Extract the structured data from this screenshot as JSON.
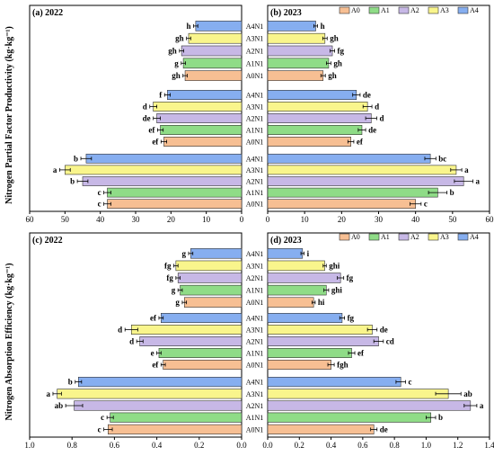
{
  "colors": {
    "A0": "#f7bf93",
    "A1": "#8fdc87",
    "A2": "#c7b8e6",
    "A3": "#f9f58c",
    "A4": "#86aef0"
  },
  "legend_labels": [
    "A0",
    "A1",
    "A2",
    "A3",
    "A4"
  ],
  "y_labels": {
    "top": "Nitrogen Partial Factor Productivity (kg·kg⁻¹)",
    "bottom": "Nitrogen Absorption Efficiency (kg·kg⁻¹)"
  },
  "chart_data": [
    {
      "type": "bar",
      "panel": "(a) 2022",
      "title": "(a) 2022",
      "orientation": "horizontal",
      "direction": "reversed",
      "xlim": [
        0,
        60
      ],
      "xticks": [
        60,
        50,
        40,
        30,
        20,
        10,
        0
      ],
      "groups": [
        {
          "categories": [
            "A4N1",
            "A3N1",
            "A2N1",
            "A1N1",
            "A0N1"
          ],
          "values": [
            13,
            15,
            17,
            16.5,
            16
          ],
          "errors": [
            0.6,
            0.6,
            0.6,
            0.6,
            0.6
          ],
          "labels": [
            "h",
            "gh",
            "gh",
            "g",
            "gh"
          ]
        },
        {
          "categories": [
            "A4N1",
            "A3N1",
            "A2N1",
            "A1N1",
            "A0N1"
          ],
          "values": [
            21,
            25,
            24,
            23,
            22
          ],
          "errors": [
            0.8,
            1,
            1,
            0.8,
            0.8
          ],
          "labels": [
            "f",
            "d",
            "de",
            "ef",
            "ef"
          ]
        },
        {
          "categories": [
            "A4N1",
            "A3N1",
            "A2N1",
            "A1N1",
            "A0N1"
          ],
          "values": [
            44,
            50,
            45,
            38,
            38
          ],
          "errors": [
            1.5,
            1.5,
            1.5,
            1.0,
            1.0
          ],
          "labels": [
            "b",
            "a",
            "b",
            "c",
            "c"
          ]
        }
      ]
    },
    {
      "type": "bar",
      "panel": "(b) 2023",
      "title": "(b) 2023",
      "orientation": "horizontal",
      "xlim": [
        0,
        60
      ],
      "xticks": [
        0,
        10,
        20,
        30,
        40,
        50,
        60
      ],
      "groups": [
        {
          "categories": [
            "A4N1",
            "A3N1",
            "A2N1",
            "A1N1",
            "A0N1"
          ],
          "values": [
            13,
            15.5,
            17.5,
            16.5,
            15
          ],
          "errors": [
            0.5,
            0.6,
            0.6,
            0.6,
            0.6
          ],
          "labels": [
            "h",
            "gh",
            "fg",
            "gh",
            "gh"
          ]
        },
        {
          "categories": [
            "A4N1",
            "A3N1",
            "A2N1",
            "A1N1",
            "A0N1"
          ],
          "values": [
            24,
            27,
            28,
            25.5,
            22.5
          ],
          "errors": [
            1,
            1.2,
            1.5,
            1,
            0.8
          ],
          "labels": [
            "de",
            "d",
            "d",
            "de",
            "ef"
          ]
        },
        {
          "categories": [
            "A4N1",
            "A3N1",
            "A2N1",
            "A1N1",
            "A0N1"
          ],
          "values": [
            44,
            51,
            53,
            46,
            40
          ],
          "errors": [
            1.5,
            1.5,
            2.5,
            2.5,
            1.5
          ],
          "labels": [
            "bc",
            "a",
            "a",
            "b",
            "c"
          ]
        }
      ]
    },
    {
      "type": "bar",
      "panel": "(c) 2022",
      "title": "(c) 2022",
      "orientation": "horizontal",
      "direction": "reversed",
      "xlim": [
        0,
        1.0
      ],
      "xticks": [
        1.0,
        0.8,
        0.6,
        0.4,
        0.2,
        0.0
      ],
      "groups": [
        {
          "categories": [
            "A4N1",
            "A3N1",
            "A2N1",
            "A1N1",
            "A0N1"
          ],
          "values": [
            0.24,
            0.31,
            0.3,
            0.29,
            0.27
          ],
          "errors": [
            0.01,
            0.01,
            0.01,
            0.01,
            0.01
          ],
          "labels": [
            "g",
            "fg",
            "fg",
            "g",
            "g"
          ]
        },
        {
          "categories": [
            "A4N1",
            "A3N1",
            "A2N1",
            "A1N1",
            "A0N1"
          ],
          "values": [
            0.38,
            0.52,
            0.48,
            0.39,
            0.37
          ],
          "errors": [
            0.01,
            0.03,
            0.015,
            0.01,
            0.01
          ],
          "labels": [
            "ef",
            "d",
            "d",
            "e",
            "ef"
          ]
        },
        {
          "categories": [
            "A4N1",
            "A3N1",
            "A2N1",
            "A1N1",
            "A0N1"
          ],
          "values": [
            0.77,
            0.87,
            0.79,
            0.62,
            0.63
          ],
          "errors": [
            0.015,
            0.02,
            0.04,
            0.015,
            0.02
          ],
          "labels": [
            "b",
            "a",
            "ab",
            "c",
            "c"
          ]
        }
      ]
    },
    {
      "type": "bar",
      "panel": "(d) 2023",
      "title": "(d) 2023",
      "orientation": "horizontal",
      "xlim": [
        0,
        1.4
      ],
      "xticks": [
        0.0,
        0.2,
        0.4,
        0.6,
        0.8,
        1.0,
        1.2,
        1.4
      ],
      "groups": [
        {
          "categories": [
            "A4N1",
            "A3N1",
            "A2N1",
            "A1N1",
            "A0N1"
          ],
          "values": [
            0.22,
            0.36,
            0.46,
            0.37,
            0.29
          ],
          "errors": [
            0.01,
            0.01,
            0.02,
            0.015,
            0.01
          ],
          "labels": [
            "i",
            "ghi",
            "fg",
            "ghi",
            "hi"
          ]
        },
        {
          "categories": [
            "A4N1",
            "A3N1",
            "A2N1",
            "A1N1",
            "A0N1"
          ],
          "values": [
            0.47,
            0.66,
            0.7,
            0.53,
            0.4
          ],
          "errors": [
            0.015,
            0.03,
            0.03,
            0.02,
            0.02
          ],
          "labels": [
            "fg",
            "de",
            "cd",
            "ef",
            "fgh"
          ]
        },
        {
          "categories": [
            "A4N1",
            "A3N1",
            "A2N1",
            "A1N1",
            "A0N1"
          ],
          "values": [
            0.84,
            1.14,
            1.28,
            1.03,
            0.67
          ],
          "errors": [
            0.03,
            0.08,
            0.04,
            0.03,
            0.02
          ],
          "labels": [
            "c",
            "ab",
            "a",
            "b",
            "de"
          ]
        }
      ]
    }
  ]
}
